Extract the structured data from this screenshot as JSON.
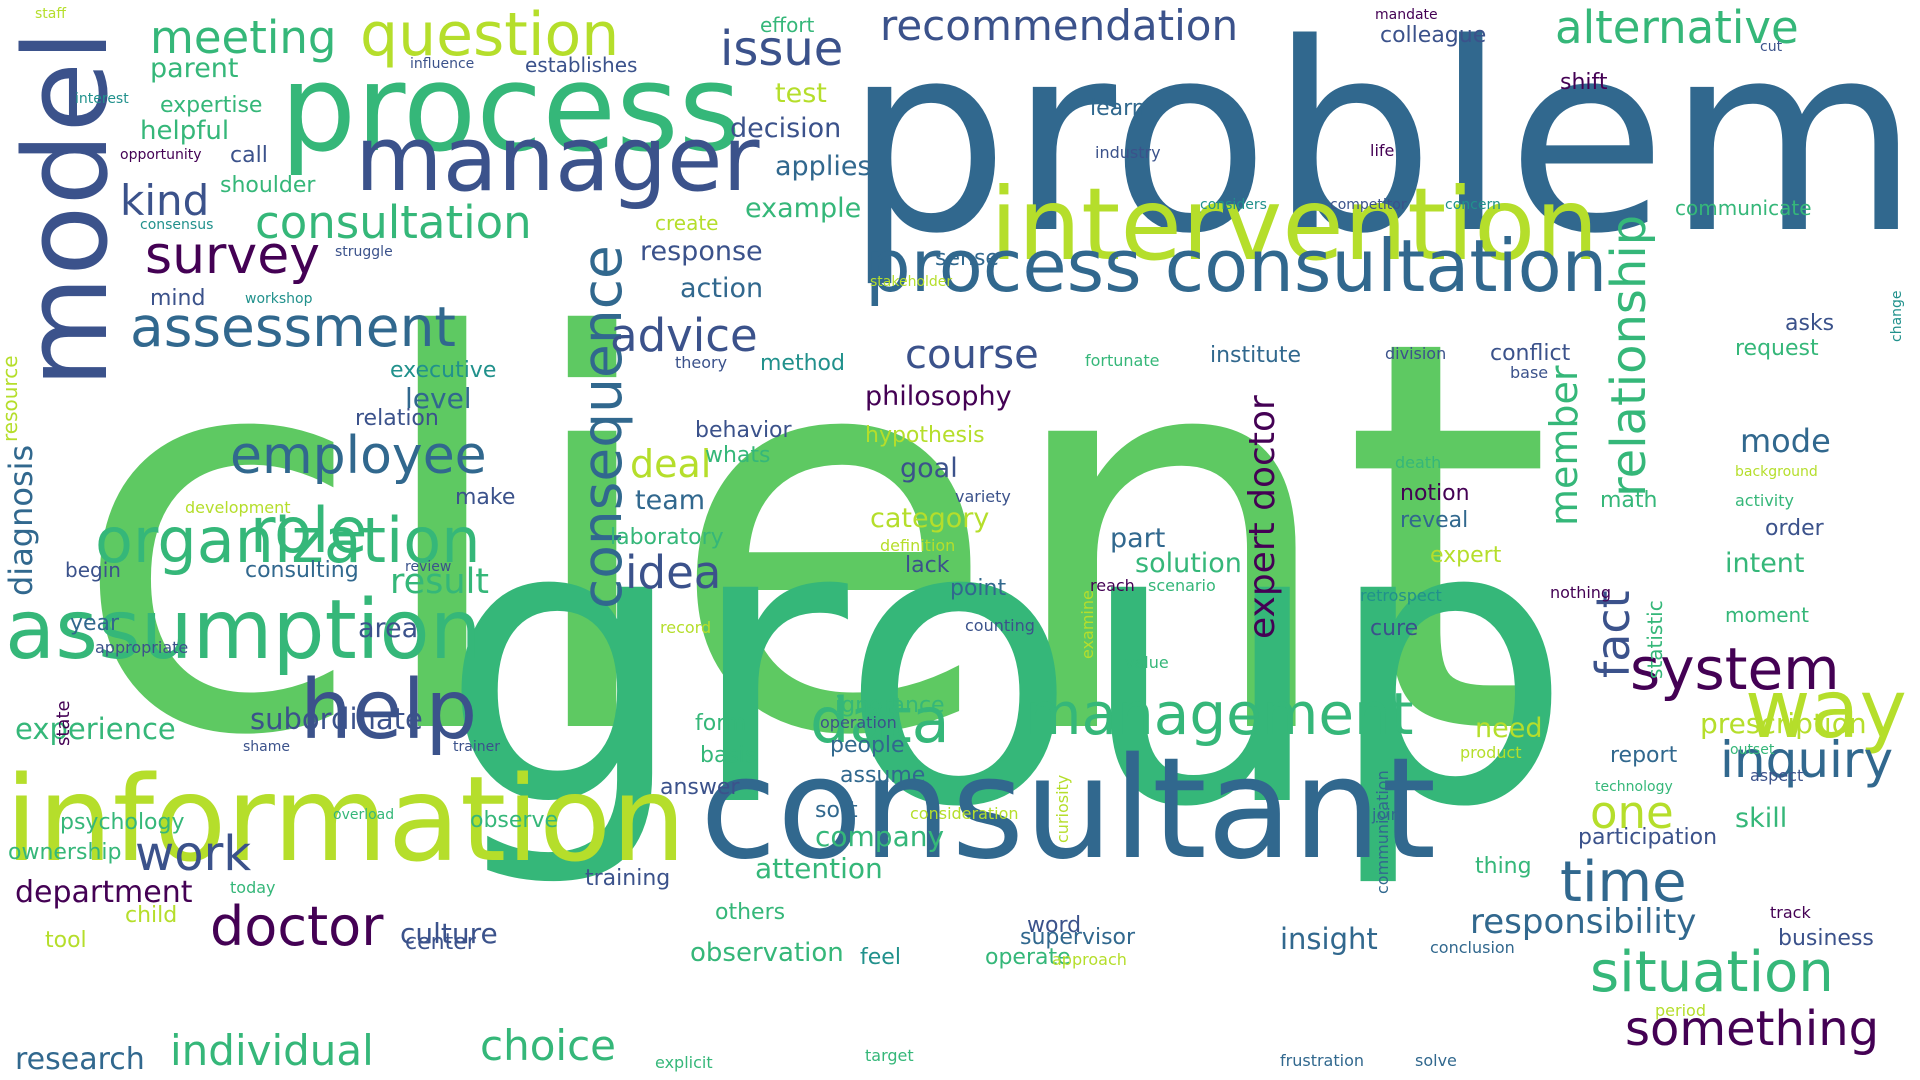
{
  "palette": {
    "purple": "#440154",
    "indigo": "#3b528b",
    "blue": "#31688e",
    "teal": "#21918c",
    "green": "#35b779",
    "lime": "#5ec962",
    "yellowgreen": "#b5de2b",
    "yellow": "#fde725"
  },
  "words": [
    "client",
    "group",
    "problem",
    "consultant",
    "information",
    "model",
    "process",
    "manager",
    "intervention",
    "process consultation",
    "assumption",
    "help",
    "way",
    "organization",
    "management",
    "data",
    "role",
    "system",
    "time",
    "situation",
    "assessment",
    "employee",
    "survey",
    "inquiry",
    "consultation",
    "something",
    "doctor",
    "question",
    "meeting",
    "relationship",
    "issue",
    "recommendation",
    "alternative",
    "consequence",
    "idea",
    "work",
    "choice",
    "individual",
    "responsibility",
    "expert doctor",
    "diagnosis",
    "kind",
    "advice",
    "deal",
    "result",
    "member",
    "fact",
    "one",
    "course",
    "mode",
    "prescription",
    "experience",
    "subordinate",
    "department",
    "research",
    "culture",
    "philosophy",
    "hypothesis",
    "insight",
    "observation",
    "company",
    "attention",
    "level",
    "executive",
    "test",
    "decision",
    "applies",
    "example",
    "response",
    "action",
    "helpful",
    "parent",
    "expertise",
    "call",
    "shoulder",
    "create",
    "mind",
    "workshop",
    "struggle",
    "consensus",
    "interest",
    "opportunity",
    "influence",
    "establishes",
    "effort",
    "staff",
    "mandate",
    "colleague",
    "shift",
    "learn",
    "industry",
    "life",
    "cut",
    "considers",
    "competitor",
    "concern",
    "communicate",
    "change",
    "sense",
    "stakeholder",
    "theory",
    "method",
    "fortunate",
    "institute",
    "division",
    "conflict",
    "base",
    "asks",
    "request",
    "resource",
    "relation",
    "behavior",
    "whats",
    "goal",
    "team",
    "laboratory",
    "category",
    "notion",
    "definition",
    "lack",
    "variety",
    "part",
    "solution",
    "reveal",
    "expert",
    "point",
    "cure",
    "death",
    "background",
    "activity",
    "math",
    "order",
    "intent",
    "statistic",
    "nothing",
    "moment",
    "retrospect",
    "counting",
    "record",
    "area",
    "make",
    "development",
    "begin",
    "year",
    "appropriate",
    "consulting",
    "review",
    "reach",
    "scenario",
    "value",
    "state",
    "ignorance",
    "need",
    "form",
    "basis",
    "operation",
    "people",
    "report",
    "product",
    "outset",
    "aspect",
    "assume",
    "answer",
    "sort",
    "psychology",
    "observe",
    "overload",
    "shame",
    "trainer",
    "skill",
    "technology",
    "communication",
    "curiosity",
    "ownership",
    "today",
    "join",
    "participation",
    "training",
    "thing",
    "child",
    "word",
    "tool",
    "center",
    "others",
    "feel",
    "operate",
    "supervisor",
    "business",
    "track",
    "conclusion",
    "approach",
    "period",
    "explicit",
    "target",
    "frustration",
    "solve",
    "consideration",
    "examine"
  ]
}
